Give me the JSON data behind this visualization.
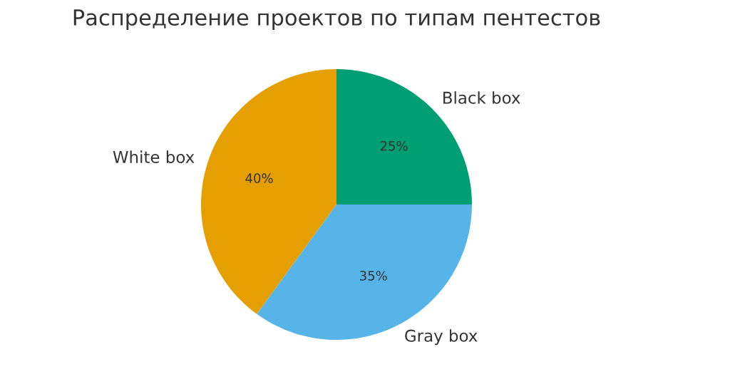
{
  "chart_data": {
    "type": "pie",
    "title": "Распределение проектов по типам пентестов",
    "categories": [
      "Black box",
      "White box",
      "Gray box"
    ],
    "values": [
      25,
      40,
      35
    ],
    "colors": [
      "#009e73",
      "#e69f00",
      "#56b4e9"
    ],
    "value_labels": [
      "25%",
      "40%",
      "35%"
    ]
  }
}
